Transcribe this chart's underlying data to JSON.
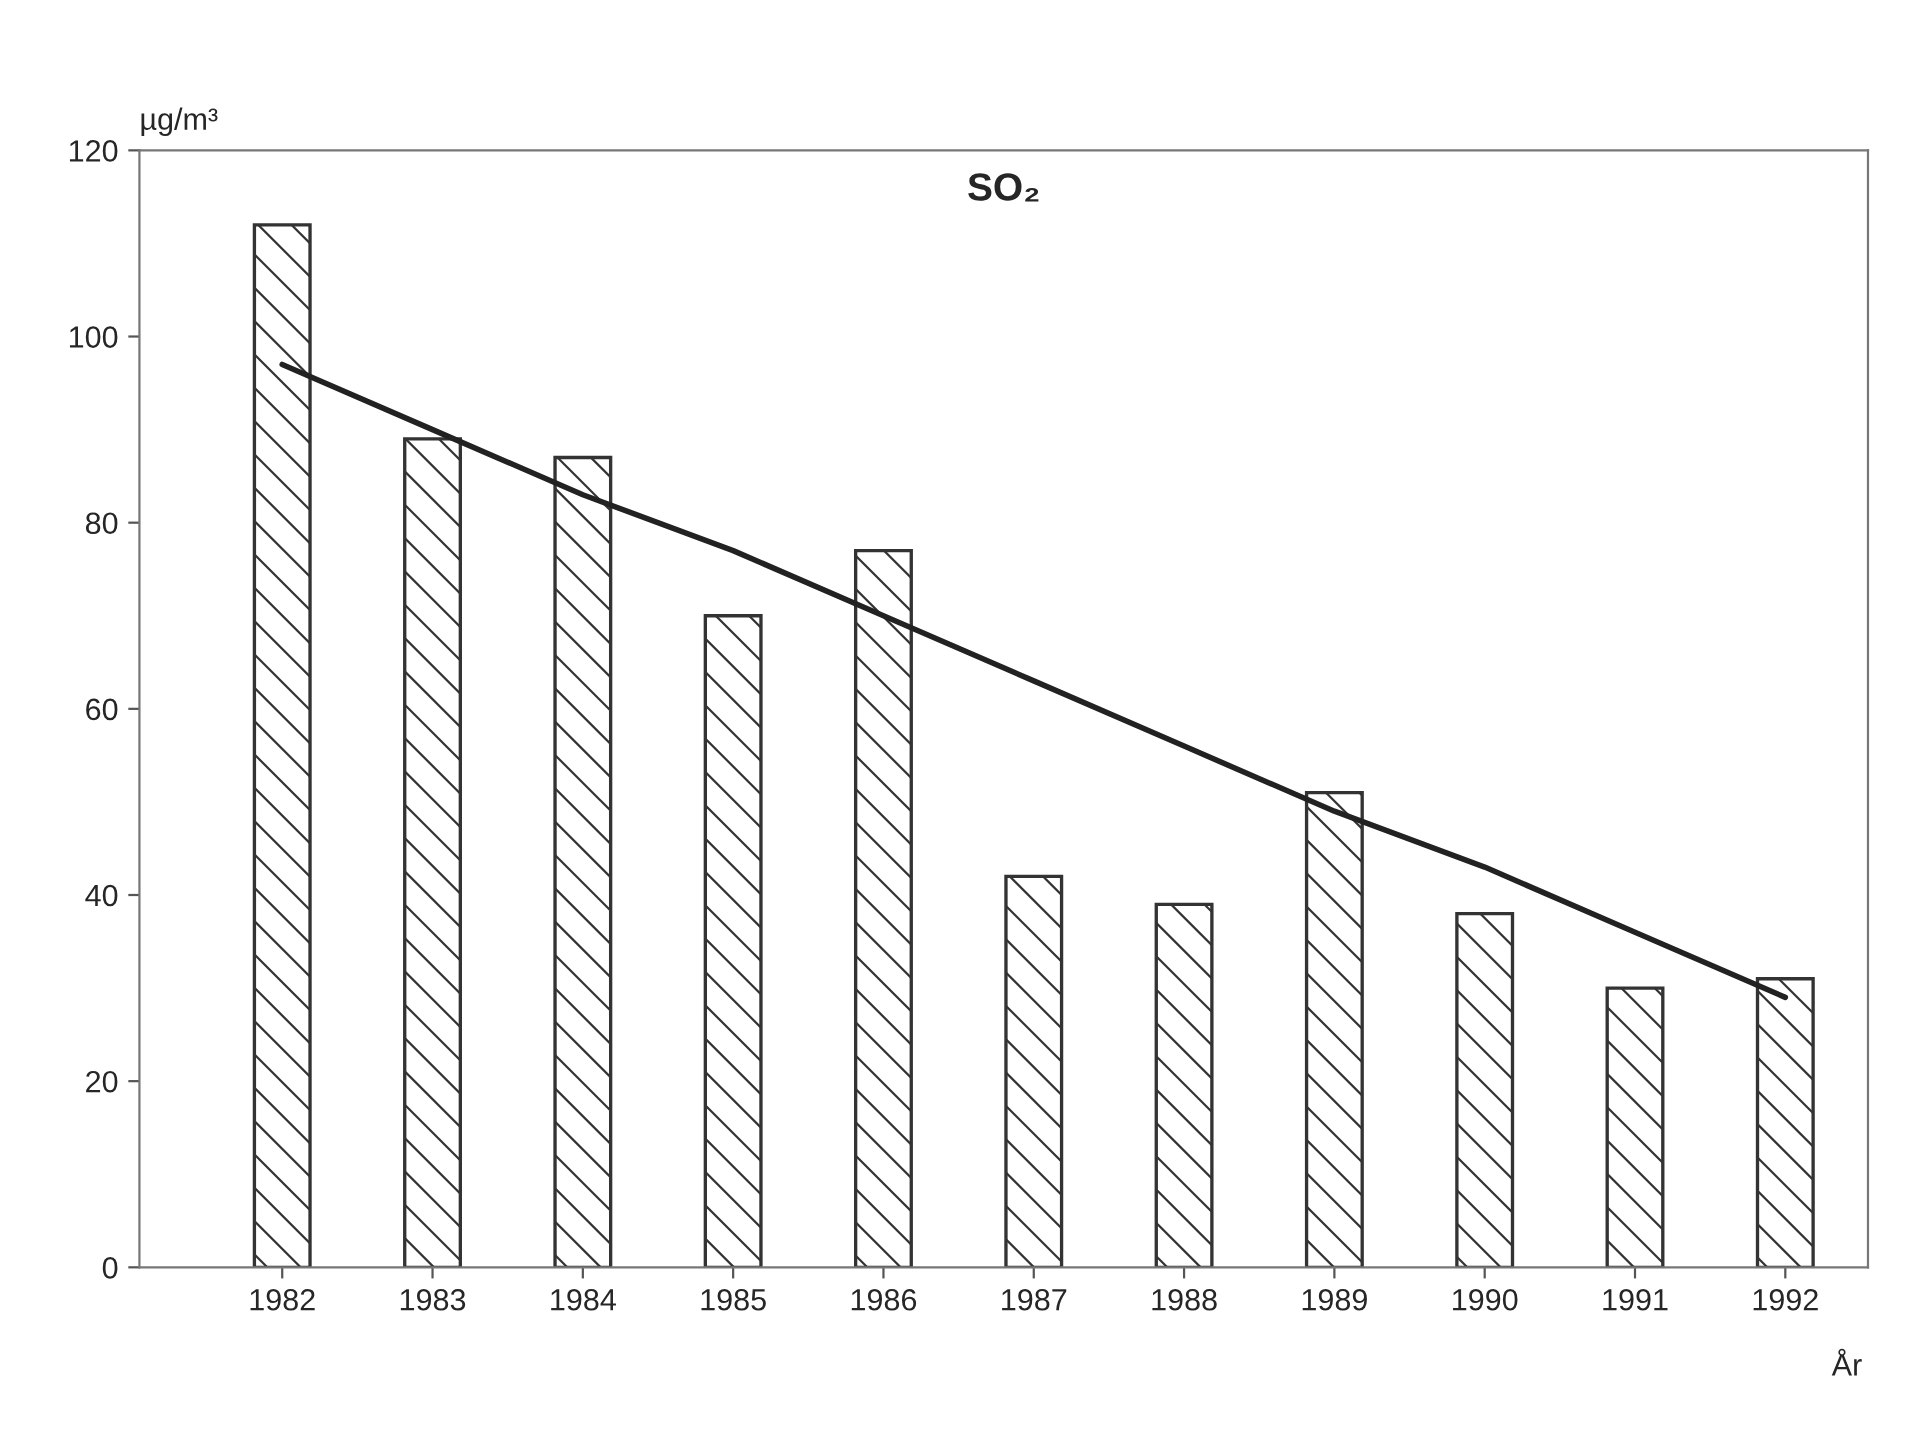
{
  "chart_data": {
    "type": "bar",
    "title": "SO₂",
    "ylabel": "µg/m³",
    "xlabel": "År",
    "categories": [
      "1982",
      "1983",
      "1984",
      "1985",
      "1986",
      "1987",
      "1988",
      "1989",
      "1990",
      "1991",
      "1992"
    ],
    "series": [
      {
        "color": "#333333",
        "values": [
          112,
          89,
          87,
          70,
          77,
          42,
          39,
          51,
          38,
          30,
          31
        ]
      },
      {
        "type": "line",
        "color": "#222222",
        "values": [
          97,
          90,
          83,
          77,
          70,
          63,
          56,
          49,
          43,
          36,
          29
        ]
      }
    ],
    "ylim": [
      0,
      120
    ],
    "yticks": [
      0,
      20,
      40,
      60,
      80,
      100,
      120
    ],
    "grid": false,
    "legend": false
  }
}
